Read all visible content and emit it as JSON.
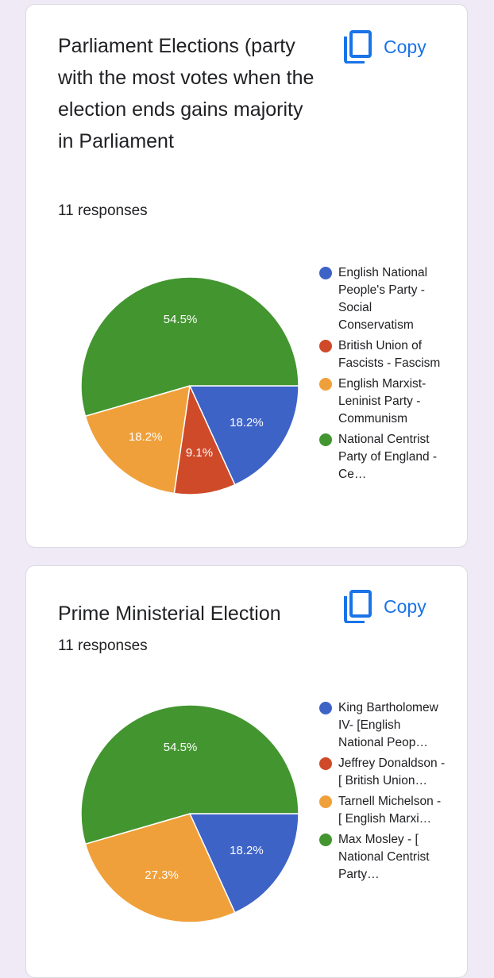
{
  "copy_label": "Copy",
  "colors": {
    "blue": "#3e63c7",
    "red": "#cf4a29",
    "orange": "#f0a03a",
    "green": "#43952f"
  },
  "cards": [
    {
      "title": "Parliament Elections (party with the most votes when the election ends gains majority in Parliament",
      "responses": "11 responses",
      "chart_data": {
        "type": "pie",
        "categories": [
          "English National People's Party - Social Conservatism",
          "British Union of Fascists - Fascism",
          "English Marxist-Leninist Party - Communism",
          "National Centrist Party of England - Ce…"
        ],
        "values": [
          18.2,
          9.1,
          18.2,
          54.5
        ],
        "labels": [
          "18.2%",
          "9.1%",
          "18.2%",
          "54.5%"
        ],
        "colors": [
          "#3e63c7",
          "#cf4a29",
          "#f0a03a",
          "#43952f"
        ],
        "legend": "right"
      }
    },
    {
      "title": "Prime Ministerial Election",
      "responses": "11 responses",
      "chart_data": {
        "type": "pie",
        "categories": [
          "King Bartholomew IV- [English National Peop…",
          "Jeffrey Donaldson - [ British Union…",
          "Tarnell Michelson - [ English Marxi…",
          "Max Mosley - [ National Centrist Party…"
        ],
        "values": [
          18.2,
          0,
          27.3,
          54.5
        ],
        "labels": [
          "18.2%",
          "",
          "27.3%",
          "54.5%"
        ],
        "colors": [
          "#3e63c7",
          "#cf4a29",
          "#f0a03a",
          "#43952f"
        ],
        "legend": "right"
      }
    }
  ]
}
